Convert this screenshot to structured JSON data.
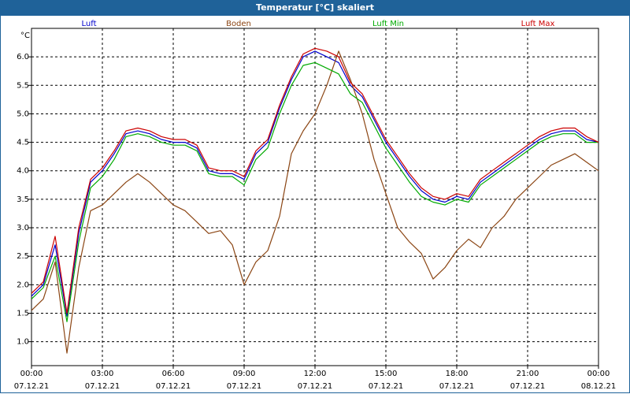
{
  "window": {
    "title": "Temperatur [°C] skaliert"
  },
  "chart_data": {
    "type": "line",
    "title": "Temperatur [°C] skaliert",
    "ylabel": "°C",
    "ylim": [
      0.58,
      6.5
    ],
    "xlim": [
      "2021-12-07T00:00",
      "2021-12-08T00:00"
    ],
    "grid": true,
    "legend_placement": "top",
    "x_ticks": [
      {
        "time": "00:00",
        "date": "07.12.21",
        "t": "2021-12-07T00:00"
      },
      {
        "time": "03:00",
        "date": "07.12.21",
        "t": "2021-12-07T03:00"
      },
      {
        "time": "06:00",
        "date": "07.12.21",
        "t": "2021-12-07T06:00"
      },
      {
        "time": "09:00",
        "date": "07.12.21",
        "t": "2021-12-07T09:00"
      },
      {
        "time": "12:00",
        "date": "07.12.21",
        "t": "2021-12-07T12:00"
      },
      {
        "time": "15:00",
        "date": "07.12.21",
        "t": "2021-12-07T15:00"
      },
      {
        "time": "18:00",
        "date": "07.12.21",
        "t": "2021-12-07T18:00"
      },
      {
        "time": "21:00",
        "date": "07.12.21",
        "t": "2021-12-07T21:00"
      },
      {
        "time": "00:00",
        "date": "08.12.21",
        "t": "2021-12-08T00:00"
      }
    ],
    "y_ticks": [
      "1.0",
      "1.5",
      "2.0",
      "2.5",
      "3.0",
      "3.5",
      "4.0",
      "4.5",
      "5.0",
      "5.5",
      "6.0"
    ],
    "x": [
      "2021-12-07T00:00",
      "2021-12-07T00:30",
      "2021-12-07T01:00",
      "2021-12-07T01:30",
      "2021-12-07T02:00",
      "2021-12-07T02:30",
      "2021-12-07T03:00",
      "2021-12-07T03:30",
      "2021-12-07T04:00",
      "2021-12-07T04:30",
      "2021-12-07T05:00",
      "2021-12-07T05:30",
      "2021-12-07T06:00",
      "2021-12-07T06:30",
      "2021-12-07T07:00",
      "2021-12-07T07:30",
      "2021-12-07T08:00",
      "2021-12-07T08:30",
      "2021-12-07T09:00",
      "2021-12-07T09:30",
      "2021-12-07T10:00",
      "2021-12-07T10:30",
      "2021-12-07T11:00",
      "2021-12-07T11:30",
      "2021-12-07T12:00",
      "2021-12-07T12:30",
      "2021-12-07T13:00",
      "2021-12-07T13:30",
      "2021-12-07T14:00",
      "2021-12-07T14:30",
      "2021-12-07T15:00",
      "2021-12-07T15:30",
      "2021-12-07T16:00",
      "2021-12-07T16:30",
      "2021-12-07T17:00",
      "2021-12-07T17:30",
      "2021-12-07T18:00",
      "2021-12-07T18:30",
      "2021-12-07T19:00",
      "2021-12-07T19:30",
      "2021-12-07T20:00",
      "2021-12-07T20:30",
      "2021-12-07T21:00",
      "2021-12-07T21:30",
      "2021-12-07T22:00",
      "2021-12-07T22:30",
      "2021-12-07T23:00",
      "2021-12-07T23:30",
      "2021-12-08T00:00"
    ],
    "series": [
      {
        "name": "Luft",
        "color": "#0000cc",
        "values": [
          1.8,
          2.0,
          2.7,
          1.45,
          2.9,
          3.8,
          4.0,
          4.3,
          4.65,
          4.7,
          4.65,
          4.55,
          4.5,
          4.5,
          4.4,
          4.0,
          3.95,
          3.95,
          3.85,
          4.3,
          4.5,
          5.1,
          5.6,
          6.0,
          6.1,
          6.0,
          5.9,
          5.5,
          5.3,
          4.9,
          4.5,
          4.2,
          3.9,
          3.65,
          3.5,
          3.45,
          3.55,
          3.5,
          3.8,
          3.95,
          4.1,
          4.25,
          4.4,
          4.55,
          4.65,
          4.7,
          4.7,
          4.55,
          4.5
        ]
      },
      {
        "name": "Boden",
        "color": "#8b4513",
        "values": [
          1.55,
          1.75,
          2.4,
          0.8,
          2.3,
          3.3,
          3.4,
          3.6,
          3.8,
          3.95,
          3.8,
          3.6,
          3.4,
          3.3,
          3.1,
          2.9,
          2.95,
          2.7,
          2.0,
          2.4,
          2.6,
          3.2,
          4.3,
          4.7,
          5.0,
          5.5,
          6.1,
          5.6,
          5.0,
          4.2,
          3.6,
          3.0,
          2.75,
          2.55,
          2.1,
          2.3,
          2.6,
          2.8,
          2.65,
          3.0,
          3.2,
          3.5,
          3.7,
          3.9,
          4.1,
          4.2,
          4.3,
          4.15,
          4.0
        ]
      },
      {
        "name": "Luft Min",
        "color": "#00aa00",
        "values": [
          1.75,
          1.95,
          2.5,
          1.35,
          2.75,
          3.7,
          3.9,
          4.2,
          4.6,
          4.65,
          4.6,
          4.5,
          4.45,
          4.45,
          4.35,
          3.95,
          3.9,
          3.9,
          3.75,
          4.2,
          4.4,
          5.0,
          5.5,
          5.85,
          5.9,
          5.8,
          5.7,
          5.35,
          5.2,
          4.8,
          4.4,
          4.1,
          3.8,
          3.55,
          3.45,
          3.4,
          3.5,
          3.45,
          3.75,
          3.9,
          4.05,
          4.2,
          4.35,
          4.5,
          4.6,
          4.65,
          4.65,
          4.5,
          4.5
        ]
      },
      {
        "name": "Luft Max",
        "color": "#cc0000",
        "values": [
          1.85,
          2.05,
          2.85,
          1.5,
          3.0,
          3.85,
          4.05,
          4.35,
          4.7,
          4.75,
          4.7,
          4.6,
          4.55,
          4.55,
          4.45,
          4.05,
          4.0,
          4.0,
          3.9,
          4.35,
          4.55,
          5.15,
          5.65,
          6.05,
          6.15,
          6.1,
          6.0,
          5.55,
          5.35,
          4.95,
          4.55,
          4.25,
          3.95,
          3.7,
          3.55,
          3.5,
          3.6,
          3.55,
          3.85,
          4.0,
          4.15,
          4.3,
          4.45,
          4.6,
          4.7,
          4.75,
          4.75,
          4.6,
          4.5
        ]
      }
    ]
  }
}
